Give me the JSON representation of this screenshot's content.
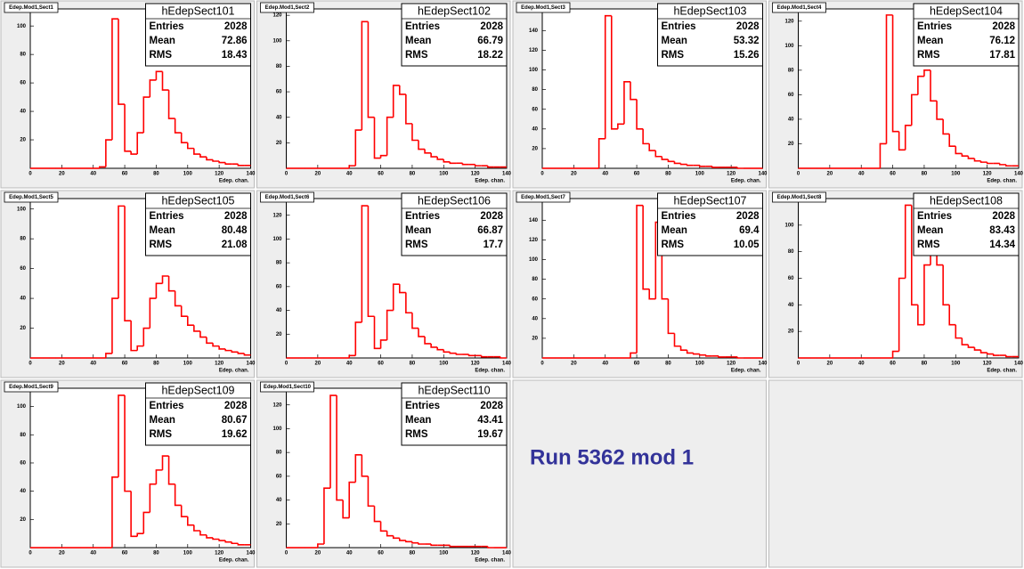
{
  "annotation": "Run 5362 mod 1",
  "chart_data": [
    {
      "type": "histogram",
      "title": "Edep.Mod1,Sect1",
      "stats_name": "hEdepSect101",
      "stats": [
        {
          "label": "Entries",
          "value": 2028
        },
        {
          "label": "Mean",
          "value": 72.86
        },
        {
          "label": "RMS",
          "value": 18.43
        }
      ],
      "x_label": "Edep. chan.",
      "color": "#ff0000",
      "bins": [
        0,
        4,
        8,
        12,
        16,
        20,
        24,
        28,
        32,
        36,
        40,
        44,
        48,
        52,
        56,
        60,
        64,
        68,
        72,
        76,
        80,
        84,
        88,
        92,
        96,
        100,
        104,
        108,
        112,
        116,
        120,
        124,
        128,
        132,
        136,
        140
      ],
      "values": [
        0,
        0,
        0,
        0,
        0,
        0,
        0,
        0,
        0,
        0,
        0,
        1,
        20,
        105,
        45,
        12,
        10,
        25,
        50,
        62,
        68,
        55,
        35,
        25,
        18,
        14,
        10,
        8,
        6,
        5,
        4,
        3,
        3,
        2,
        2
      ],
      "xlim": [
        0,
        140
      ],
      "xticks": [
        0,
        20,
        40,
        60,
        80,
        100,
        120,
        140
      ],
      "ylim": [
        0,
        112
      ],
      "yticks": [
        20,
        40,
        60,
        80,
        100
      ]
    },
    {
      "type": "histogram",
      "title": "Edep.Mod1,Sect2",
      "stats_name": "hEdepSect102",
      "stats": [
        {
          "label": "Entries",
          "value": 2028
        },
        {
          "label": "Mean",
          "value": 66.79
        },
        {
          "label": "RMS",
          "value": 18.22
        }
      ],
      "x_label": "Edep. chan.",
      "color": "#ff0000",
      "bins": [
        0,
        4,
        8,
        12,
        16,
        20,
        24,
        28,
        32,
        36,
        40,
        44,
        48,
        52,
        56,
        60,
        64,
        68,
        72,
        76,
        80,
        84,
        88,
        92,
        96,
        100,
        104,
        108,
        112,
        116,
        120,
        124,
        128,
        132,
        136,
        140
      ],
      "values": [
        0,
        0,
        0,
        0,
        0,
        0,
        0,
        0,
        0,
        0,
        2,
        30,
        115,
        40,
        8,
        10,
        40,
        65,
        58,
        35,
        22,
        15,
        12,
        9,
        7,
        5,
        4,
        4,
        3,
        3,
        2,
        2,
        1,
        1,
        1
      ],
      "xlim": [
        0,
        140
      ],
      "xticks": [
        0,
        20,
        40,
        60,
        80,
        100,
        120,
        140
      ],
      "ylim": [
        0,
        125
      ],
      "yticks": [
        20,
        40,
        60,
        80,
        100,
        120
      ]
    },
    {
      "type": "histogram",
      "title": "Edep.Mod1,Sect3",
      "stats_name": "hEdepSect103",
      "stats": [
        {
          "label": "Entries",
          "value": 2028
        },
        {
          "label": "Mean",
          "value": 53.32
        },
        {
          "label": "RMS",
          "value": 15.26
        }
      ],
      "x_label": "Edep. chan.",
      "color": "#ff0000",
      "bins": [
        0,
        4,
        8,
        12,
        16,
        20,
        24,
        28,
        32,
        36,
        40,
        44,
        48,
        52,
        56,
        60,
        64,
        68,
        72,
        76,
        80,
        84,
        88,
        92,
        96,
        100,
        104,
        108,
        112,
        116,
        120,
        124,
        128,
        132,
        136,
        140
      ],
      "values": [
        0,
        0,
        0,
        0,
        0,
        0,
        0,
        0,
        0,
        30,
        155,
        40,
        45,
        88,
        70,
        40,
        25,
        18,
        12,
        9,
        7,
        5,
        4,
        3,
        3,
        2,
        2,
        1,
        1,
        1,
        1,
        0,
        0,
        0,
        0
      ],
      "xlim": [
        0,
        140
      ],
      "xticks": [
        0,
        20,
        40,
        60,
        80,
        100,
        120,
        140
      ],
      "ylim": [
        0,
        162
      ],
      "yticks": [
        20,
        40,
        60,
        80,
        100,
        120,
        140
      ]
    },
    {
      "type": "histogram",
      "title": "Edep.Mod1,Sect4",
      "stats_name": "hEdepSect104",
      "stats": [
        {
          "label": "Entries",
          "value": 2028
        },
        {
          "label": "Mean",
          "value": 76.12
        },
        {
          "label": "RMS",
          "value": 17.81
        }
      ],
      "x_label": "Edep. chan.",
      "color": "#ff0000",
      "bins": [
        0,
        4,
        8,
        12,
        16,
        20,
        24,
        28,
        32,
        36,
        40,
        44,
        48,
        52,
        56,
        60,
        64,
        68,
        72,
        76,
        80,
        84,
        88,
        92,
        96,
        100,
        104,
        108,
        112,
        116,
        120,
        124,
        128,
        132,
        136,
        140
      ],
      "values": [
        0,
        0,
        0,
        0,
        0,
        0,
        0,
        0,
        0,
        0,
        0,
        0,
        0,
        20,
        125,
        30,
        15,
        35,
        60,
        75,
        80,
        55,
        40,
        28,
        18,
        12,
        10,
        8,
        6,
        5,
        4,
        4,
        3,
        2,
        2
      ],
      "xlim": [
        0,
        140
      ],
      "xticks": [
        0,
        20,
        40,
        60,
        80,
        100,
        120,
        140
      ],
      "ylim": [
        0,
        130
      ],
      "yticks": [
        20,
        40,
        60,
        80,
        100,
        120
      ]
    },
    {
      "type": "histogram",
      "title": "Edep.Mod1,Sect5",
      "stats_name": "hEdepSect105",
      "stats": [
        {
          "label": "Entries",
          "value": 2028
        },
        {
          "label": "Mean",
          "value": 80.48
        },
        {
          "label": "RMS",
          "value": 21.08
        }
      ],
      "x_label": "Edep. chan.",
      "color": "#ff0000",
      "bins": [
        0,
        4,
        8,
        12,
        16,
        20,
        24,
        28,
        32,
        36,
        40,
        44,
        48,
        52,
        56,
        60,
        64,
        68,
        72,
        76,
        80,
        84,
        88,
        92,
        96,
        100,
        104,
        108,
        112,
        116,
        120,
        124,
        128,
        132,
        136,
        140
      ],
      "values": [
        0,
        0,
        0,
        0,
        0,
        0,
        0,
        0,
        0,
        0,
        0,
        0,
        3,
        40,
        102,
        25,
        5,
        8,
        20,
        40,
        50,
        55,
        45,
        35,
        28,
        22,
        18,
        14,
        10,
        8,
        6,
        5,
        4,
        3,
        2
      ],
      "xlim": [
        0,
        140
      ],
      "xticks": [
        0,
        20,
        40,
        60,
        80,
        100,
        120,
        140
      ],
      "ylim": [
        0,
        107
      ],
      "yticks": [
        20,
        40,
        60,
        80,
        100
      ]
    },
    {
      "type": "histogram",
      "title": "Edep.Mod1,Sect6",
      "stats_name": "hEdepSect106",
      "stats": [
        {
          "label": "Entries",
          "value": 2028
        },
        {
          "label": "Mean",
          "value": 66.87
        },
        {
          "label": "RMS",
          "value": 17.7
        }
      ],
      "x_label": "Edep. chan.",
      "color": "#ff0000",
      "bins": [
        0,
        4,
        8,
        12,
        16,
        20,
        24,
        28,
        32,
        36,
        40,
        44,
        48,
        52,
        56,
        60,
        64,
        68,
        72,
        76,
        80,
        84,
        88,
        92,
        96,
        100,
        104,
        108,
        112,
        116,
        120,
        124,
        128,
        132,
        136,
        140
      ],
      "values": [
        0,
        0,
        0,
        0,
        0,
        0,
        0,
        0,
        0,
        0,
        2,
        30,
        128,
        35,
        8,
        15,
        40,
        62,
        55,
        38,
        25,
        18,
        12,
        9,
        7,
        5,
        4,
        3,
        3,
        2,
        2,
        1,
        1,
        1,
        0
      ],
      "xlim": [
        0,
        140
      ],
      "xticks": [
        0,
        20,
        40,
        60,
        80,
        100,
        120,
        140
      ],
      "ylim": [
        0,
        134
      ],
      "yticks": [
        20,
        40,
        60,
        80,
        100,
        120
      ]
    },
    {
      "type": "histogram",
      "title": "Edep.Mod1,Sect7",
      "stats_name": "hEdepSect107",
      "stats": [
        {
          "label": "Entries",
          "value": 2028
        },
        {
          "label": "Mean",
          "value": 69.4
        },
        {
          "label": "RMS",
          "value": 10.05
        }
      ],
      "x_label": "Edep. chan.",
      "color": "#ff0000",
      "bins": [
        0,
        4,
        8,
        12,
        16,
        20,
        24,
        28,
        32,
        36,
        40,
        44,
        48,
        52,
        56,
        60,
        64,
        68,
        72,
        76,
        80,
        84,
        88,
        92,
        96,
        100,
        104,
        108,
        112,
        116,
        120,
        124,
        128,
        132,
        136,
        140
      ],
      "values": [
        0,
        0,
        0,
        0,
        0,
        0,
        0,
        0,
        0,
        0,
        0,
        0,
        0,
        0,
        5,
        155,
        70,
        60,
        138,
        60,
        25,
        12,
        8,
        5,
        4,
        3,
        2,
        2,
        1,
        1,
        1,
        0,
        0,
        0,
        0
      ],
      "xlim": [
        0,
        140
      ],
      "xticks": [
        0,
        20,
        40,
        60,
        80,
        100,
        120,
        140
      ],
      "ylim": [
        0,
        162
      ],
      "yticks": [
        20,
        40,
        60,
        80,
        100,
        120,
        140,
        160
      ]
    },
    {
      "type": "histogram",
      "title": "Edep.Mod1,Sect8",
      "stats_name": "hEdepSect108",
      "stats": [
        {
          "label": "Entries",
          "value": 2028
        },
        {
          "label": "Mean",
          "value": 83.43
        },
        {
          "label": "RMS",
          "value": 14.34
        }
      ],
      "x_label": "Edep. chan.",
      "color": "#ff0000",
      "bins": [
        0,
        4,
        8,
        12,
        16,
        20,
        24,
        28,
        32,
        36,
        40,
        44,
        48,
        52,
        56,
        60,
        64,
        68,
        72,
        76,
        80,
        84,
        88,
        92,
        96,
        100,
        104,
        108,
        112,
        116,
        120,
        124,
        128,
        132,
        136,
        140
      ],
      "values": [
        0,
        0,
        0,
        0,
        0,
        0,
        0,
        0,
        0,
        0,
        0,
        0,
        0,
        0,
        0,
        5,
        60,
        115,
        40,
        25,
        70,
        105,
        70,
        40,
        25,
        15,
        10,
        8,
        6,
        4,
        3,
        2,
        2,
        1,
        1
      ],
      "xlim": [
        0,
        140
      ],
      "xticks": [
        0,
        20,
        40,
        60,
        80,
        100,
        120,
        140
      ],
      "ylim": [
        0,
        120
      ],
      "yticks": [
        20,
        40,
        60,
        80,
        100
      ]
    },
    {
      "type": "histogram",
      "title": "Edep.Mod1,Sect9",
      "stats_name": "hEdepSect109",
      "stats": [
        {
          "label": "Entries",
          "value": 2028
        },
        {
          "label": "Mean",
          "value": 80.67
        },
        {
          "label": "RMS",
          "value": 19.62
        }
      ],
      "x_label": "Edep. chan.",
      "color": "#ff0000",
      "bins": [
        0,
        4,
        8,
        12,
        16,
        20,
        24,
        28,
        32,
        36,
        40,
        44,
        48,
        52,
        56,
        60,
        64,
        68,
        72,
        76,
        80,
        84,
        88,
        92,
        96,
        100,
        104,
        108,
        112,
        116,
        120,
        124,
        128,
        132,
        136,
        140
      ],
      "values": [
        0,
        0,
        0,
        0,
        0,
        0,
        0,
        0,
        0,
        0,
        0,
        0,
        0,
        50,
        108,
        40,
        8,
        10,
        25,
        45,
        55,
        65,
        45,
        30,
        22,
        16,
        12,
        9,
        7,
        6,
        5,
        4,
        3,
        2,
        2
      ],
      "xlim": [
        0,
        140
      ],
      "xticks": [
        0,
        20,
        40,
        60,
        80,
        100,
        120,
        140
      ],
      "ylim": [
        0,
        113
      ],
      "yticks": [
        20,
        40,
        60,
        80,
        100
      ]
    },
    {
      "type": "histogram",
      "title": "Edep.Mod1,Sect10",
      "stats_name": "hEdepSect110",
      "stats": [
        {
          "label": "Entries",
          "value": 2028
        },
        {
          "label": "Mean",
          "value": 43.41
        },
        {
          "label": "RMS",
          "value": 19.67
        }
      ],
      "x_label": "Edep. chan.",
      "color": "#ff0000",
      "bins": [
        0,
        4,
        8,
        12,
        16,
        20,
        24,
        28,
        32,
        36,
        40,
        44,
        48,
        52,
        56,
        60,
        64,
        68,
        72,
        76,
        80,
        84,
        88,
        92,
        96,
        100,
        104,
        108,
        112,
        116,
        120,
        124,
        128,
        132,
        136,
        140
      ],
      "values": [
        0,
        0,
        0,
        0,
        0,
        3,
        50,
        128,
        40,
        25,
        55,
        78,
        60,
        35,
        22,
        14,
        10,
        8,
        6,
        5,
        4,
        3,
        3,
        2,
        2,
        2,
        1,
        1,
        1,
        1,
        1,
        1,
        0,
        0,
        0
      ],
      "xlim": [
        0,
        140
      ],
      "xticks": [
        0,
        20,
        40,
        60,
        80,
        100,
        120,
        140
      ],
      "ylim": [
        0,
        134
      ],
      "yticks": [
        20,
        40,
        60,
        80,
        100,
        120
      ]
    }
  ]
}
